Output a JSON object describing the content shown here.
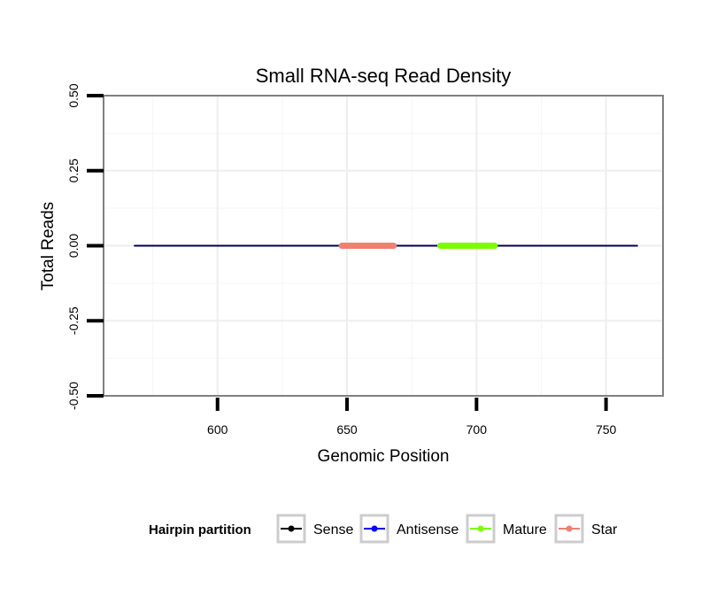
{
  "chart_data": {
    "type": "line",
    "title": "Small RNA-seq Read Density",
    "xlabel": "Genomic Position",
    "ylabel": "Total Reads",
    "xlim": [
      556,
      772
    ],
    "ylim": [
      -0.5,
      0.5
    ],
    "x_ticks": [
      600,
      650,
      700,
      750
    ],
    "x_tick_labels": [
      "600",
      "650",
      "700",
      "750"
    ],
    "y_ticks": [
      -0.5,
      -0.25,
      0,
      0.25,
      0.5
    ],
    "y_tick_labels": [
      "-0.50",
      "-0.25",
      "0.00",
      "0.25",
      "0.50"
    ],
    "grid": true,
    "series": [
      {
        "name": "Sense",
        "color": "#000000",
        "x": [
          568,
          762
        ],
        "y": [
          0,
          0
        ]
      },
      {
        "name": "Antisense",
        "color": "#0000ff",
        "x": [
          568,
          762
        ],
        "y": [
          0,
          0
        ]
      },
      {
        "name": "Mature",
        "color": "#7cfc00",
        "x": [
          686,
          707
        ],
        "y": [
          0,
          0
        ]
      },
      {
        "name": "Star",
        "color": "#f08070",
        "x": [
          648,
          668
        ],
        "y": [
          0,
          0
        ]
      }
    ],
    "legend": {
      "title": "Hairpin partition",
      "position": "bottom",
      "entries": [
        {
          "label": "Sense",
          "color": "#000000"
        },
        {
          "label": "Antisense",
          "color": "#0000ff"
        },
        {
          "label": "Mature",
          "color": "#7cfc00"
        },
        {
          "label": "Star",
          "color": "#f08070"
        }
      ]
    }
  }
}
